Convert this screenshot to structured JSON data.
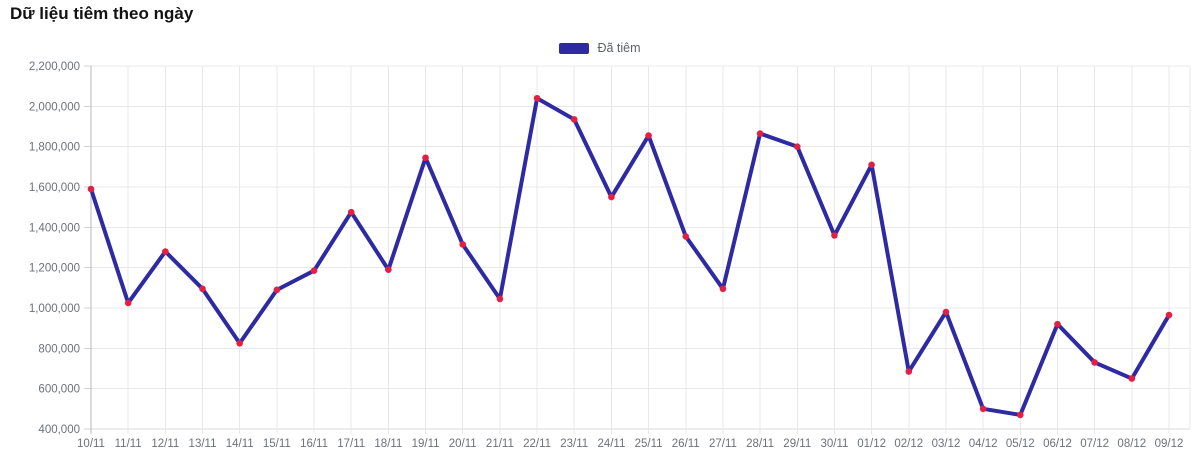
{
  "header": {
    "title": "Dữ liệu tiêm theo ngày"
  },
  "legend": {
    "items": [
      {
        "label": "Đã tiêm",
        "color": "#2e2aa2"
      }
    ]
  },
  "chart_data": {
    "type": "line",
    "title": "Dữ liệu tiêm theo ngày",
    "categories": [
      "10/11",
      "11/11",
      "12/11",
      "13/11",
      "14/11",
      "15/11",
      "16/11",
      "17/11",
      "18/11",
      "19/11",
      "20/11",
      "21/11",
      "22/11",
      "23/11",
      "24/11",
      "25/11",
      "26/11",
      "27/11",
      "28/11",
      "29/11",
      "30/11",
      "01/12",
      "02/12",
      "03/12",
      "04/12",
      "05/12",
      "06/12",
      "07/12",
      "08/12",
      "09/12"
    ],
    "series": [
      {
        "name": "Đã tiêm",
        "color": "#2e2aa2",
        "marker_color": "#e22043",
        "values": [
          1590000,
          1025000,
          1280000,
          1095000,
          825000,
          1090000,
          1185000,
          1475000,
          1190000,
          1745000,
          1315000,
          1045000,
          2040000,
          1935000,
          1550000,
          1855000,
          1355000,
          1095000,
          1865000,
          1800000,
          1360000,
          1710000,
          685000,
          980000,
          500000,
          470000,
          920000,
          730000,
          650000,
          965000
        ]
      }
    ],
    "xlabel": "",
    "ylabel": "",
    "ylim": [
      400000,
      2200000
    ],
    "ytick_step": 200000,
    "ytick_labels": [
      "400,000",
      "600,000",
      "800,000",
      "1,000,000",
      "1,200,000",
      "1,400,000",
      "1,600,000",
      "1,800,000",
      "2,000,000",
      "2,200,000"
    ],
    "grid": true,
    "legend_position": "top-center",
    "colors": {
      "grid_line": "#e8e8e8",
      "x_axis_line": "#d9dbdd",
      "y_axis_line": "#b4b8bb",
      "axis_tick": "#d0d3d6",
      "tick_label": "#6d7277"
    }
  }
}
